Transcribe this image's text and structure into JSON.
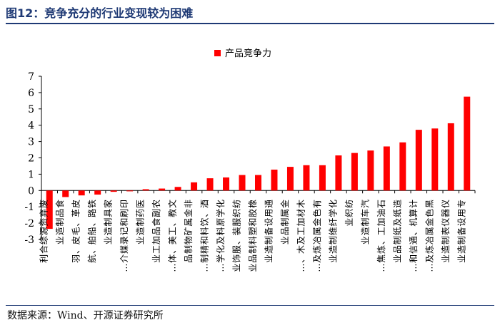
{
  "figure": {
    "title": "图12：竞争充分的行业变现较为困难",
    "source": "数据来源：Wind、开源证券研究所"
  },
  "colors": {
    "bar": "#ff0000",
    "axis": "#000000",
    "title": "#1f3a75"
  },
  "chart_data": {
    "type": "bar",
    "title": "",
    "xlabel": "",
    "ylabel": "",
    "ylim": [
      -3,
      7
    ],
    "yticks": [
      -3,
      -2,
      -1,
      0,
      1,
      2,
      3,
      4,
      5,
      6,
      7
    ],
    "grid": false,
    "legend": "top-center",
    "categories": [
      "废弃资源综合利",
      "食品制造业",
      "皮革、毛皮、羽",
      "铁路、船舶、航",
      "家具制造业",
      "印刷和记录媒介…",
      "医药制造业",
      "农副食品加工业",
      "文教、工美、体…",
      "非金属矿物制品",
      "酒、饮料和精制…",
      "化学原料及化学…",
      "纺织服装、服饰业",
      "橡胶和塑料制品业",
      "通用设备制造业",
      "金属制品业",
      "木材加工及木、…",
      "有色金属冶炼及…",
      "化学纤维制造业",
      "纺织业",
      "汽车制造业",
      "石油加工、炼焦…",
      "造纸及纸制品业",
      "计算机、通信和…",
      "黑色金属冶炼及…",
      "仪器仪表制造业",
      "专用设备制造业"
    ],
    "series": [
      {
        "name": "产品竞争力",
        "values": [
          -2.35,
          -0.4,
          -0.3,
          -0.25,
          -0.08,
          -0.05,
          0.08,
          0.12,
          0.22,
          0.5,
          0.75,
          0.8,
          0.95,
          0.95,
          1.28,
          1.45,
          1.55,
          1.55,
          2.15,
          2.3,
          2.45,
          2.7,
          2.95,
          3.72,
          3.8,
          4.12,
          5.75
        ]
      }
    ]
  }
}
